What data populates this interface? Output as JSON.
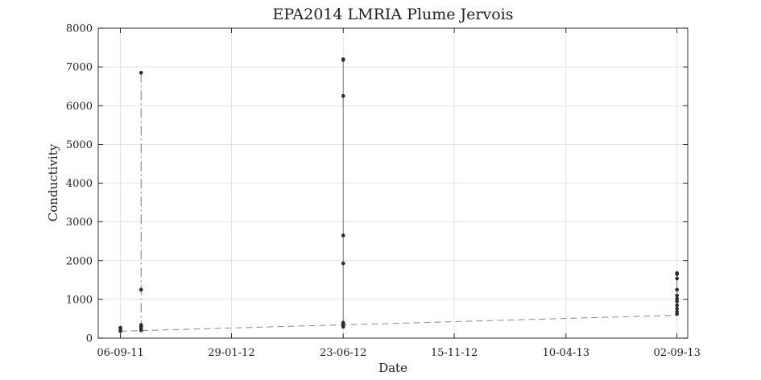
{
  "chart_data": {
    "type": "scatter",
    "title": "EPA2014 LMRIA Plume Jervois",
    "xlabel": "Date",
    "ylabel": "Conductivity",
    "x_axis_type": "date",
    "xlim": [
      "2011-08-08",
      "2013-09-16"
    ],
    "ylim": [
      0,
      8000
    ],
    "x_ticks": [
      "2011-09-06",
      "2012-01-29",
      "2012-06-23",
      "2012-11-15",
      "2013-04-10",
      "2013-09-02"
    ],
    "x_tick_labels": [
      "06-09-11",
      "29-01-12",
      "23-06-12",
      "15-11-12",
      "10-04-13",
      "02-09-13"
    ],
    "y_ticks": [
      0,
      1000,
      2000,
      3000,
      4000,
      5000,
      6000,
      7000,
      8000
    ],
    "y_tick_labels": [
      "0",
      "1000",
      "2000",
      "3000",
      "4000",
      "5000",
      "6000",
      "7000",
      "8000"
    ],
    "grid": true,
    "legend": "none",
    "colors": {
      "points": "#2b2b2b",
      "vertical_lines": "#777777",
      "trend_line": "#8a8a8a",
      "grid": "#dddddd",
      "axes": "#000000"
    },
    "groups": [
      {
        "date": "2011-09-06",
        "line_style": "solid",
        "values": [
          180,
          230,
          270
        ]
      },
      {
        "date": "2011-10-03",
        "line_style": "dashed",
        "values": [
          200,
          250,
          300,
          340,
          1250,
          6850
        ]
      },
      {
        "date": "2012-06-23",
        "line_style": "solid",
        "values": [
          290,
          320,
          360,
          400,
          1930,
          2650,
          6250,
          7180,
          7200
        ]
      },
      {
        "date": "2013-09-02",
        "line_style": "solid",
        "values": [
          620,
          680,
          760,
          850,
          950,
          1020,
          1100,
          1250,
          1540,
          1650,
          1680
        ]
      }
    ],
    "trend_line": {
      "style": "dashed",
      "x": [
        "2011-09-06",
        "2013-09-02"
      ],
      "y": [
        180,
        590
      ]
    }
  }
}
